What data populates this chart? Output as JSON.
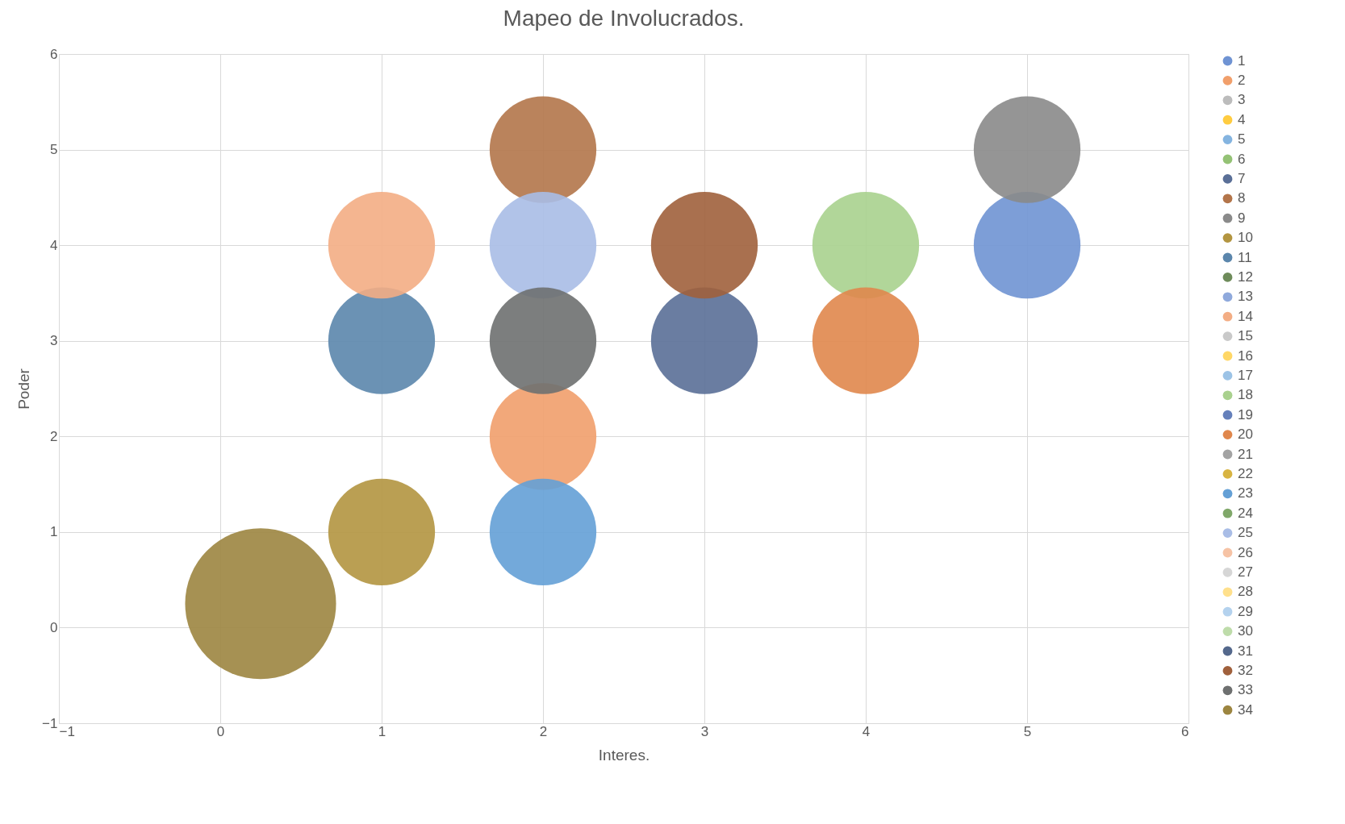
{
  "chart_data": {
    "type": "bubble",
    "title": "Mapeo de Involucrados.",
    "xlabel": "Interes.",
    "ylabel": "Poder",
    "xlim": [
      -1,
      6
    ],
    "xticks": [
      -1,
      0,
      1,
      2,
      3,
      4,
      5,
      6
    ],
    "ylim": [
      -1,
      6
    ],
    "yticks": [
      -1,
      0,
      1,
      2,
      3,
      4,
      5,
      6
    ],
    "grid": true,
    "legend": "right",
    "series": [
      {
        "name": "1",
        "color": "#6f93d3",
        "x": [
          5
        ],
        "values": [
          4
        ],
        "sizes": [
          0.5
        ]
      },
      {
        "name": "2",
        "color": "#f19f6b",
        "x": [
          2
        ],
        "values": [
          2
        ],
        "sizes": [
          0.5
        ]
      },
      {
        "name": "3",
        "color": "#bcbcbc",
        "x": [
          null
        ],
        "values": [
          null
        ],
        "sizes": [
          null
        ]
      },
      {
        "name": "4",
        "color": "#ffcc40",
        "x": [
          null
        ],
        "values": [
          null
        ],
        "sizes": [
          null
        ]
      },
      {
        "name": "5",
        "color": "#84b4e0",
        "x": [
          null
        ],
        "values": [
          null
        ],
        "sizes": [
          null
        ]
      },
      {
        "name": "6",
        "color": "#94c275",
        "x": [
          null
        ],
        "values": [
          null
        ],
        "sizes": [
          null
        ]
      },
      {
        "name": "7",
        "color": "#5a6f97",
        "x": [
          3
        ],
        "values": [
          3
        ],
        "sizes": [
          0.5
        ]
      },
      {
        "name": "8",
        "color": "#b3754a",
        "x": [
          2
        ],
        "values": [
          5
        ],
        "sizes": [
          0.5
        ]
      },
      {
        "name": "9",
        "color": "#8a8a8a",
        "x": [
          5
        ],
        "values": [
          5
        ],
        "sizes": [
          0.5
        ]
      },
      {
        "name": "10",
        "color": "#b39540",
        "x": [
          1
        ],
        "values": [
          1
        ],
        "sizes": [
          0.5
        ]
      },
      {
        "name": "11",
        "color": "#5b86ac",
        "x": [
          1
        ],
        "values": [
          3
        ],
        "sizes": [
          0.5
        ]
      },
      {
        "name": "12",
        "color": "#6e8b5a",
        "x": [
          null
        ],
        "values": [
          null
        ],
        "sizes": [
          null
        ]
      },
      {
        "name": "13",
        "color": "#8fa9dc",
        "x": [
          null
        ],
        "values": [
          null
        ],
        "sizes": [
          null
        ]
      },
      {
        "name": "14",
        "color": "#f3ad84",
        "x": [
          1
        ],
        "values": [
          4
        ],
        "sizes": [
          0.5
        ]
      },
      {
        "name": "15",
        "color": "#c9c9c9",
        "x": [
          null
        ],
        "values": [
          null
        ],
        "sizes": [
          null
        ]
      },
      {
        "name": "16",
        "color": "#ffd766",
        "x": [
          null
        ],
        "values": [
          null
        ],
        "sizes": [
          null
        ]
      },
      {
        "name": "17",
        "color": "#9cc3e6",
        "x": [
          null
        ],
        "values": [
          null
        ],
        "sizes": [
          null
        ]
      },
      {
        "name": "18",
        "color": "#a9d18e",
        "x": [
          4
        ],
        "values": [
          4
        ],
        "sizes": [
          0.5
        ]
      },
      {
        "name": "19",
        "color": "#6580bb",
        "x": [
          null
        ],
        "values": [
          null
        ],
        "sizes": [
          null
        ]
      },
      {
        "name": "20",
        "color": "#e0874c",
        "x": [
          4
        ],
        "values": [
          3
        ],
        "sizes": [
          0.5
        ]
      },
      {
        "name": "21",
        "color": "#a3a3a3",
        "x": [
          null
        ],
        "values": [
          null
        ],
        "sizes": [
          null
        ]
      },
      {
        "name": "22",
        "color": "#d8b442",
        "x": [
          null
        ],
        "values": [
          null
        ],
        "sizes": [
          null
        ]
      },
      {
        "name": "23",
        "color": "#64a0d6",
        "x": [
          2
        ],
        "values": [
          1
        ],
        "sizes": [
          0.5
        ]
      },
      {
        "name": "24",
        "color": "#80a86a",
        "x": [
          null
        ],
        "values": [
          null
        ],
        "sizes": [
          null
        ]
      },
      {
        "name": "25",
        "color": "#a9bde6",
        "x": [
          2
        ],
        "values": [
          4
        ],
        "sizes": [
          0.5
        ]
      },
      {
        "name": "26",
        "color": "#f6c3a5",
        "x": [
          null
        ],
        "values": [
          null
        ],
        "sizes": [
          null
        ]
      },
      {
        "name": "27",
        "color": "#d6d6d6",
        "x": [
          null
        ],
        "values": [
          null
        ],
        "sizes": [
          null
        ]
      },
      {
        "name": "28",
        "color": "#ffe08c",
        "x": [
          null
        ],
        "values": [
          null
        ],
        "sizes": [
          null
        ]
      },
      {
        "name": "29",
        "color": "#b4d2ee",
        "x": [
          null
        ],
        "values": [
          null
        ],
        "sizes": [
          null
        ]
      },
      {
        "name": "30",
        "color": "#bedcaa",
        "x": [
          null
        ],
        "values": [
          null
        ],
        "sizes": [
          null
        ]
      },
      {
        "name": "31",
        "color": "#54688c",
        "x": [
          null
        ],
        "values": [
          null
        ],
        "sizes": [
          null
        ]
      },
      {
        "name": "32",
        "color": "#a0603c",
        "x": [
          3
        ],
        "values": [
          4
        ],
        "sizes": [
          0.5
        ]
      },
      {
        "name": "33",
        "color": "#6e7070",
        "x": [
          2
        ],
        "values": [
          3
        ],
        "sizes": [
          0.5
        ]
      },
      {
        "name": "34",
        "color": "#9c8540",
        "x": [
          0.25
        ],
        "values": [
          0.25
        ],
        "sizes": [
          1
        ]
      }
    ]
  }
}
